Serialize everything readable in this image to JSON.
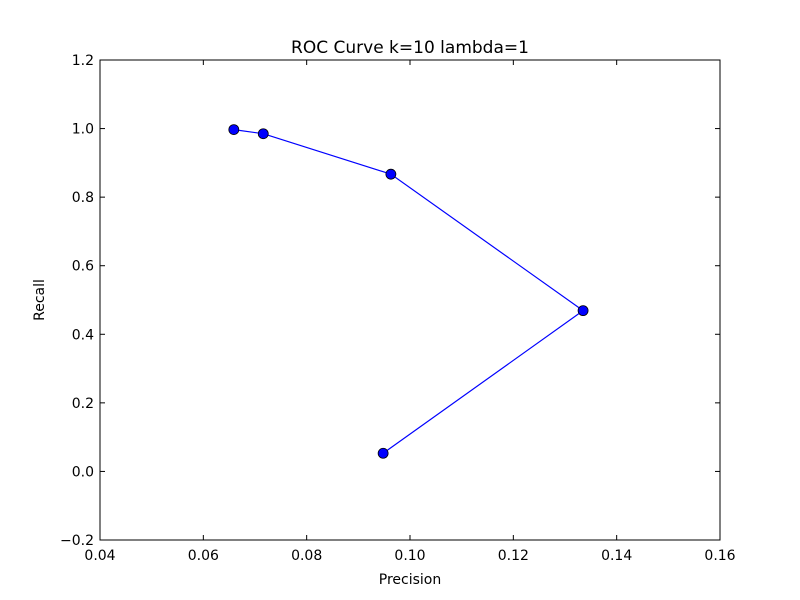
{
  "chart_data": {
    "type": "line",
    "title": "ROC Curve k=10 lambda=1",
    "xlabel": "Precision",
    "ylabel": "Recall",
    "xlim": [
      0.04,
      0.16
    ],
    "ylim": [
      -0.2,
      1.2
    ],
    "xticks": [
      0.04,
      0.06,
      0.08,
      0.1,
      0.12,
      0.14,
      0.16
    ],
    "xtick_labels": [
      "0.04",
      "0.06",
      "0.08",
      "0.10",
      "0.12",
      "0.14",
      "0.16"
    ],
    "yticks": [
      -0.2,
      0.0,
      0.2,
      0.4,
      0.6,
      0.8,
      1.0,
      1.2
    ],
    "ytick_labels": [
      "−0.2",
      "0.0",
      "0.2",
      "0.4",
      "0.6",
      "0.8",
      "1.0",
      "1.2"
    ],
    "grid": false,
    "series": [
      {
        "color": "#0000ff",
        "marker": "circle",
        "x": [
          0.0659,
          0.0716,
          0.0963,
          0.1335,
          0.0948
        ],
        "y": [
          0.997,
          0.985,
          0.867,
          0.469,
          0.053
        ]
      }
    ]
  }
}
